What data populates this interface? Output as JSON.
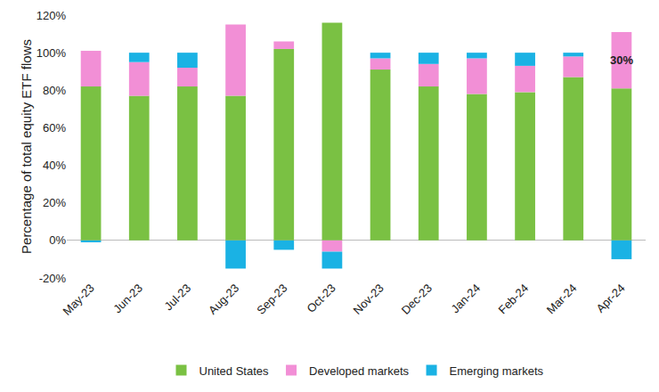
{
  "chart_data": {
    "type": "bar",
    "stacked": true,
    "y_label": "Percentage of total equity ETF flows",
    "categories": [
      "May-23",
      "Jun-23",
      "Jul-23",
      "Aug-23",
      "Sep-23",
      "Oct-23",
      "Nov-23",
      "Dec-23",
      "Jan-24",
      "Feb-24",
      "Mar-24",
      "Apr-24"
    ],
    "series": [
      {
        "name": "United States",
        "color": "#7ac143",
        "values": [
          82,
          77,
          82,
          77,
          102,
          116,
          91,
          82,
          78,
          79,
          87,
          81
        ]
      },
      {
        "name": "Developed markets",
        "color": "#f28fd6",
        "values": [
          19,
          18,
          10,
          38,
          4,
          -6,
          6,
          12,
          19,
          14,
          11,
          30
        ]
      },
      {
        "name": "Emerging markets",
        "color": "#1ab2e4",
        "values": [
          -1,
          5,
          8,
          -15,
          -5,
          -9,
          3,
          6,
          3,
          7,
          2,
          -10
        ]
      }
    ],
    "annotations": [
      {
        "text": "30%",
        "category": "Apr-24",
        "series": "Developed markets"
      }
    ],
    "ylim": [
      -20,
      120
    ],
    "yticks": [
      {
        "value": -20,
        "label": "-20%"
      },
      {
        "value": 0,
        "label": "0%"
      },
      {
        "value": 20,
        "label": "20%"
      },
      {
        "value": 40,
        "label": "40%"
      },
      {
        "value": 60,
        "label": "60%"
      },
      {
        "value": 80,
        "label": "80%"
      },
      {
        "value": 100,
        "label": "100%"
      },
      {
        "value": 120,
        "label": "120%"
      }
    ],
    "grid": false,
    "legend": "bottom"
  }
}
